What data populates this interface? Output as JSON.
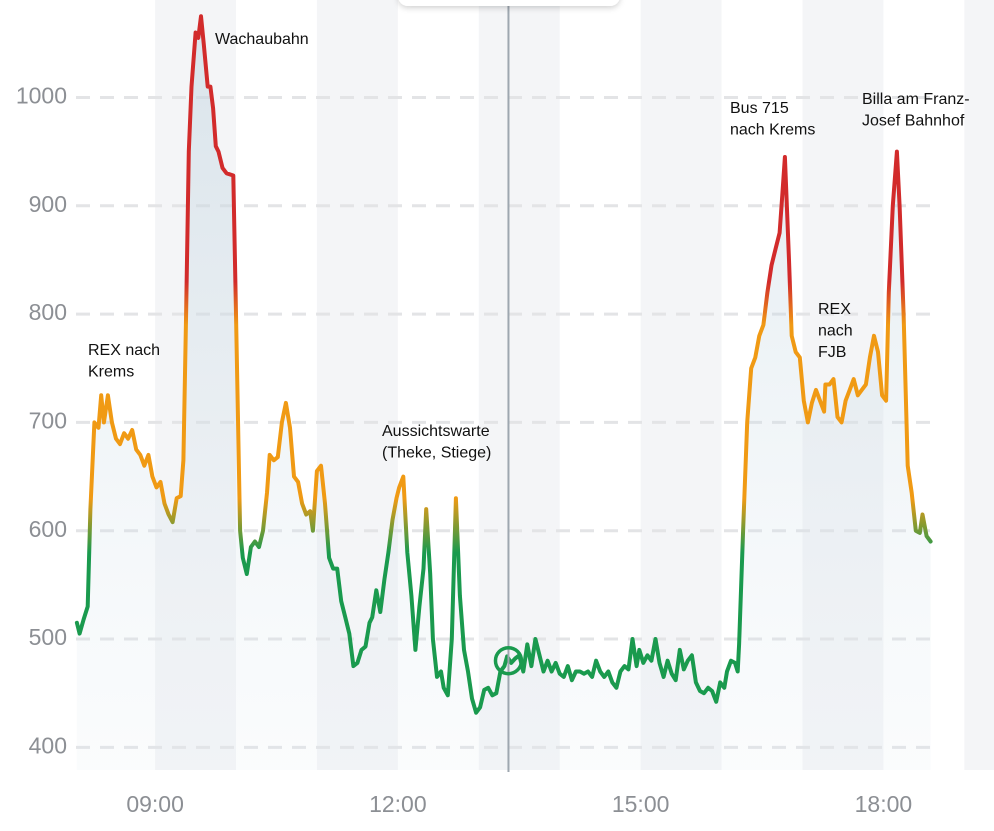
{
  "chart_data": {
    "type": "line",
    "x": [
      "08:02",
      "08:04",
      "08:07",
      "08:10",
      "08:12",
      "08:15",
      "08:18",
      "08:20",
      "08:22",
      "08:25",
      "08:28",
      "08:31",
      "08:34",
      "08:37",
      "08:40",
      "08:43",
      "08:46",
      "08:49",
      "08:52",
      "08:55",
      "08:58",
      "09:01",
      "09:04",
      "09:07",
      "09:10",
      "09:13",
      "09:16",
      "09:19",
      "09:21",
      "09:23",
      "09:25",
      "09:27",
      "09:30",
      "09:32",
      "09:34",
      "09:36",
      "09:39",
      "09:41",
      "09:43",
      "09:45",
      "09:47",
      "09:50",
      "09:53",
      "09:58",
      "10:00",
      "10:03",
      "10:05",
      "10:08",
      "10:11",
      "10:14",
      "10:17",
      "10:20",
      "10:23",
      "10:25",
      "10:28",
      "10:31",
      "10:34",
      "10:37",
      "10:40",
      "10:43",
      "10:46",
      "10:49",
      "10:52",
      "10:55",
      "10:57",
      "11:00",
      "11:03",
      "11:06",
      "11:09",
      "11:12",
      "11:15",
      "11:18",
      "11:21",
      "11:24",
      "11:27",
      "11:30",
      "11:33",
      "11:36",
      "11:39",
      "11:41",
      "11:44",
      "11:47",
      "11:50",
      "11:53",
      "11:56",
      "11:59",
      "12:01",
      "12:04",
      "12:07",
      "12:10",
      "12:13",
      "12:16",
      "12:19",
      "12:21",
      "12:24",
      "12:26",
      "12:29",
      "12:32",
      "12:34",
      "12:37",
      "12:40",
      "12:43",
      "12:46",
      "12:49",
      "12:52",
      "12:55",
      "12:58",
      "13:01",
      "13:04",
      "13:07",
      "13:10",
      "13:13",
      "13:16",
      "13:19",
      "13:21",
      "13:24",
      "13:27",
      "13:30",
      "13:33",
      "13:36",
      "13:39",
      "13:42",
      "13:45",
      "13:48",
      "13:51",
      "13:54",
      "13:57",
      "14:00",
      "14:03",
      "14:06",
      "14:09",
      "14:12",
      "14:15",
      "14:18",
      "14:21",
      "14:24",
      "14:27",
      "14:30",
      "14:33",
      "14:36",
      "14:39",
      "14:42",
      "14:45",
      "14:48",
      "14:51",
      "14:54",
      "14:57",
      "14:59",
      "15:02",
      "15:05",
      "15:08",
      "15:11",
      "15:14",
      "15:17",
      "15:20",
      "15:23",
      "15:26",
      "15:29",
      "15:32",
      "15:35",
      "15:38",
      "15:41",
      "15:44",
      "15:47",
      "15:50",
      "15:53",
      "15:56",
      "15:59",
      "16:02",
      "16:04",
      "16:07",
      "16:10",
      "16:12",
      "16:13",
      "16:16",
      "16:19",
      "16:22",
      "16:25",
      "16:28",
      "16:31",
      "16:34",
      "16:37",
      "16:40",
      "16:43",
      "16:45",
      "16:47",
      "16:50",
      "16:52",
      "16:55",
      "16:58",
      "17:01",
      "17:04",
      "17:07",
      "17:10",
      "17:13",
      "17:16",
      "17:17",
      "17:20",
      "17:23",
      "17:26",
      "17:29",
      "17:32",
      "17:35",
      "17:38",
      "17:41",
      "17:44",
      "17:47",
      "17:50",
      "17:53",
      "17:56",
      "17:59",
      "18:02",
      "18:04",
      "18:07",
      "18:10",
      "18:12",
      "18:15",
      "18:18",
      "18:21",
      "18:24",
      "18:27",
      "18:29",
      "18:32",
      "18:35"
    ],
    "values": [
      515,
      505,
      518,
      530,
      620,
      700,
      695,
      725,
      700,
      725,
      700,
      685,
      680,
      690,
      685,
      693,
      675,
      670,
      660,
      670,
      650,
      640,
      645,
      625,
      615,
      608,
      630,
      632,
      665,
      800,
      950,
      1010,
      1060,
      1055,
      1075,
      1050,
      1010,
      1010,
      990,
      955,
      950,
      935,
      930,
      928,
      800,
      600,
      575,
      560,
      585,
      590,
      585,
      600,
      635,
      670,
      665,
      668,
      700,
      718,
      695,
      650,
      645,
      625,
      615,
      618,
      600,
      655,
      660,
      625,
      575,
      565,
      565,
      535,
      520,
      505,
      475,
      478,
      490,
      493,
      515,
      520,
      545,
      525,
      555,
      580,
      610,
      630,
      640,
      650,
      580,
      540,
      490,
      530,
      565,
      620,
      560,
      500,
      465,
      470,
      455,
      448,
      500,
      630,
      540,
      490,
      470,
      445,
      432,
      437,
      453,
      455,
      448,
      450,
      470,
      475,
      484,
      478,
      482,
      485,
      470,
      495,
      475,
      500,
      485,
      470,
      480,
      470,
      478,
      468,
      465,
      475,
      462,
      470,
      470,
      468,
      470,
      465,
      480,
      470,
      465,
      470,
      460,
      455,
      470,
      475,
      472,
      500,
      475,
      490,
      478,
      485,
      480,
      500,
      478,
      465,
      480,
      468,
      462,
      490,
      472,
      480,
      485,
      460,
      452,
      450,
      455,
      452,
      442,
      460,
      455,
      470,
      480,
      478,
      470,
      495,
      600,
      700,
      750,
      760,
      780,
      790,
      820,
      845,
      860,
      875,
      910,
      945,
      850,
      780,
      765,
      760,
      720,
      700,
      718,
      730,
      720,
      710,
      735,
      735,
      740,
      705,
      700,
      720,
      730,
      740,
      725,
      730,
      735,
      760,
      780,
      765,
      725,
      720,
      820,
      900,
      950,
      900,
      800,
      660,
      635,
      600,
      598,
      615,
      595,
      590
    ],
    "color_stops": [
      {
        "value": 580,
        "color": "#1a9a4e"
      },
      {
        "value": 630,
        "color": "#f09a14"
      },
      {
        "value": 790,
        "color": "#f09a14"
      },
      {
        "value": 830,
        "color": "#d22b2b"
      }
    ],
    "xlim": [
      "07:05",
      "19:22"
    ],
    "xticks": [
      "09:00",
      "12:00",
      "15:00",
      "18:00"
    ],
    "ylim": [
      380,
      1090
    ],
    "yticks": [
      400,
      500,
      600,
      700,
      800,
      900,
      1000
    ],
    "grid": true,
    "cursor": {
      "x": "13:22",
      "value": 480
    },
    "annotations": [
      [
        "Wachaubahn"
      ],
      [
        "REX nach",
        "Krems"
      ],
      [
        "Aussichtswarte",
        "(Theke, Stiege)"
      ],
      [
        "Bus 715",
        "nach Krems"
      ],
      [
        "REX",
        "nach",
        "FJB"
      ],
      [
        "Billa am Franz-",
        "Josef Bahnhof"
      ]
    ]
  }
}
